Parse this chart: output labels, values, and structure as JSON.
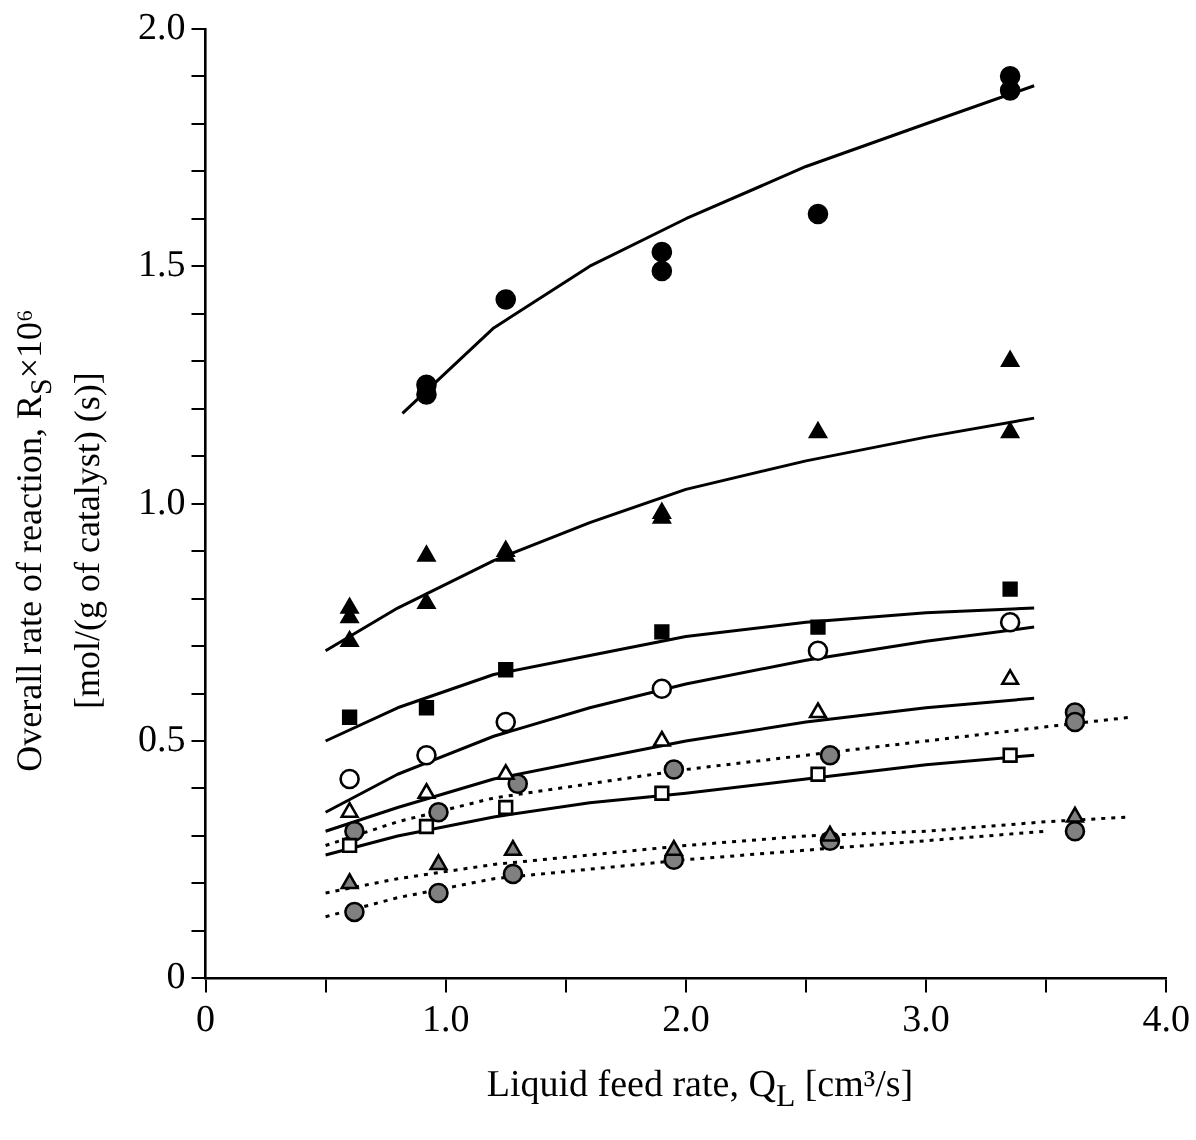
{
  "chart_data": {
    "type": "scatter",
    "xlabel": "Liquid feed rate, Q$_{L}$ [cm³/s]",
    "ylabel": "Overall rate of reaction, R$_{S}$×10⁶\n[mol/(g of catalyst) (s)]",
    "xlim": [
      0,
      4.0
    ],
    "ylim": [
      0,
      2.0
    ],
    "xticks": [
      0,
      {
        "value": 0.5,
        "label": null
      },
      {
        "value": 1,
        "label": "1.0"
      },
      {
        "value": 1.5,
        "label": null
      },
      {
        "value": 2,
        "label": "2.0"
      },
      {
        "value": 2.5,
        "label": null
      },
      {
        "value": 3,
        "label": "3.0"
      },
      {
        "value": 3.5,
        "label": null
      },
      {
        "value": 4,
        "label": "4.0"
      }
    ],
    "yticks": [
      0,
      {
        "value": 0.1,
        "label": null
      },
      {
        "value": 0.2,
        "label": null
      },
      {
        "value": 0.3,
        "label": null
      },
      {
        "value": 0.4,
        "label": null
      },
      0.5,
      {
        "value": 0.6,
        "label": null
      },
      {
        "value": 0.7,
        "label": null
      },
      {
        "value": 0.8,
        "label": null
      },
      {
        "value": 0.9,
        "label": null
      },
      {
        "value": 1,
        "label": "1.0"
      },
      {
        "value": 1.1,
        "label": null
      },
      {
        "value": 1.2,
        "label": null
      },
      {
        "value": 1.3,
        "label": null
      },
      {
        "value": 1.4,
        "label": null
      },
      1.5,
      {
        "value": 1.6,
        "label": null
      },
      {
        "value": 1.7,
        "label": null
      },
      {
        "value": 1.8,
        "label": null
      },
      {
        "value": 1.9,
        "label": null
      },
      {
        "value": 2,
        "label": "2.0"
      }
    ],
    "grid": false,
    "legend": false,
    "series": [
      {
        "marker": "circle",
        "color": "#000000",
        "x": [
          0.92,
          0.92,
          1.25,
          1.9,
          1.9,
          2.55,
          3.35,
          3.35
        ],
        "values": [
          1.25,
          1.23,
          1.43,
          1.53,
          1.49,
          1.61,
          1.9,
          1.87
        ]
      },
      {
        "marker": "triangle",
        "color": "#000000",
        "x": [
          0.6,
          0.6,
          0.6,
          0.92,
          0.92,
          1.25,
          1.25,
          1.9,
          1.9,
          2.55,
          3.35,
          3.35
        ],
        "values": [
          0.78,
          0.76,
          0.71,
          0.89,
          0.79,
          0.9,
          0.89,
          0.98,
          0.97,
          1.15,
          1.3,
          1.15
        ]
      },
      {
        "marker": "square",
        "color": "#000000",
        "x": [
          0.6,
          0.92,
          1.25,
          1.9,
          2.55,
          3.35
        ],
        "values": [
          0.55,
          0.57,
          0.65,
          0.73,
          0.74,
          0.82
        ]
      },
      {
        "marker": "circle",
        "color": "#ffffff",
        "x": [
          0.6,
          0.92,
          1.25,
          1.9,
          2.55,
          3.35
        ],
        "values": [
          0.42,
          0.47,
          0.54,
          0.61,
          0.69,
          0.75
        ]
      },
      {
        "marker": "triangle",
        "color": "#ffffff",
        "x": [
          0.6,
          0.92,
          1.25,
          1.9,
          2.55,
          3.35
        ],
        "values": [
          0.35,
          0.39,
          0.43,
          0.5,
          0.56,
          0.63
        ]
      },
      {
        "marker": "square",
        "color": "#ffffff",
        "x": [
          0.6,
          0.92,
          1.25,
          1.9,
          2.55,
          3.35
        ],
        "values": [
          0.28,
          0.32,
          0.36,
          0.39,
          0.43,
          0.47
        ]
      },
      {
        "marker": "circle",
        "color": "#808080",
        "x": [
          0.62,
          0.97,
          1.3,
          1.95,
          2.6,
          3.62,
          3.62
        ],
        "values": [
          0.31,
          0.35,
          0.41,
          0.44,
          0.47,
          0.56,
          0.54
        ]
      },
      {
        "marker": "triangle",
        "color": "#808080",
        "x": [
          0.6,
          0.97,
          1.28,
          1.95,
          2.6,
          3.62
        ],
        "values": [
          0.2,
          0.24,
          0.27,
          0.27,
          0.3,
          0.34
        ]
      },
      {
        "marker": "circle",
        "color": "#808080",
        "x": [
          0.62,
          0.97,
          1.28,
          1.95,
          2.6,
          3.62
        ],
        "values": [
          0.14,
          0.18,
          0.22,
          0.25,
          0.29,
          0.31
        ]
      },
      {
        "type": "line",
        "marker": "none",
        "line_style": "solid",
        "color": "#000000",
        "x": [
          0.82,
          1.2,
          1.6,
          2.0,
          2.5,
          3.0,
          3.45
        ],
        "values": [
          1.19,
          1.37,
          1.5,
          1.6,
          1.71,
          1.8,
          1.88
        ]
      },
      {
        "type": "line",
        "marker": "none",
        "line_style": "solid",
        "color": "#000000",
        "x": [
          0.5,
          0.8,
          1.2,
          1.6,
          2.0,
          2.5,
          3.0,
          3.45
        ],
        "values": [
          0.69,
          0.78,
          0.88,
          0.96,
          1.03,
          1.09,
          1.14,
          1.18
        ]
      },
      {
        "type": "line",
        "marker": "none",
        "line_style": "solid",
        "color": "#000000",
        "x": [
          0.5,
          0.8,
          1.2,
          1.6,
          2.0,
          2.5,
          3.0,
          3.45
        ],
        "values": [
          0.5,
          0.57,
          0.64,
          0.68,
          0.72,
          0.75,
          0.77,
          0.78
        ]
      },
      {
        "type": "line",
        "marker": "none",
        "line_style": "solid",
        "color": "#000000",
        "x": [
          0.5,
          0.8,
          1.2,
          1.6,
          2.0,
          2.5,
          3.0,
          3.45
        ],
        "values": [
          0.35,
          0.43,
          0.51,
          0.57,
          0.62,
          0.67,
          0.71,
          0.74
        ]
      },
      {
        "type": "line",
        "marker": "none",
        "line_style": "solid",
        "color": "#000000",
        "x": [
          0.5,
          0.8,
          1.2,
          1.6,
          2.0,
          2.5,
          3.0,
          3.45
        ],
        "values": [
          0.31,
          0.36,
          0.42,
          0.46,
          0.5,
          0.54,
          0.57,
          0.59
        ]
      },
      {
        "type": "line",
        "marker": "none",
        "line_style": "solid",
        "color": "#000000",
        "x": [
          0.5,
          0.8,
          1.2,
          1.6,
          2.0,
          2.5,
          3.0,
          3.45
        ],
        "values": [
          0.26,
          0.3,
          0.34,
          0.37,
          0.39,
          0.42,
          0.45,
          0.47
        ]
      },
      {
        "type": "line",
        "marker": "none",
        "line_style": "dotted",
        "color": "#000000",
        "x": [
          0.5,
          0.8,
          1.2,
          1.6,
          2.0,
          2.5,
          3.0,
          3.5,
          3.85
        ],
        "values": [
          0.28,
          0.33,
          0.38,
          0.41,
          0.44,
          0.47,
          0.5,
          0.53,
          0.55
        ]
      },
      {
        "type": "line",
        "marker": "none",
        "line_style": "dotted",
        "color": "#000000",
        "x": [
          0.5,
          0.8,
          1.2,
          1.6,
          2.0,
          2.5,
          3.0,
          3.5,
          3.85
        ],
        "values": [
          0.18,
          0.21,
          0.24,
          0.26,
          0.28,
          0.3,
          0.31,
          0.33,
          0.34
        ]
      },
      {
        "type": "line",
        "marker": "none",
        "line_style": "dotted",
        "color": "#000000",
        "x": [
          0.5,
          0.8,
          1.2,
          1.6,
          2.0,
          2.5,
          3.0,
          3.5
        ],
        "values": [
          0.13,
          0.17,
          0.21,
          0.23,
          0.25,
          0.27,
          0.29,
          0.31
        ]
      }
    ]
  }
}
